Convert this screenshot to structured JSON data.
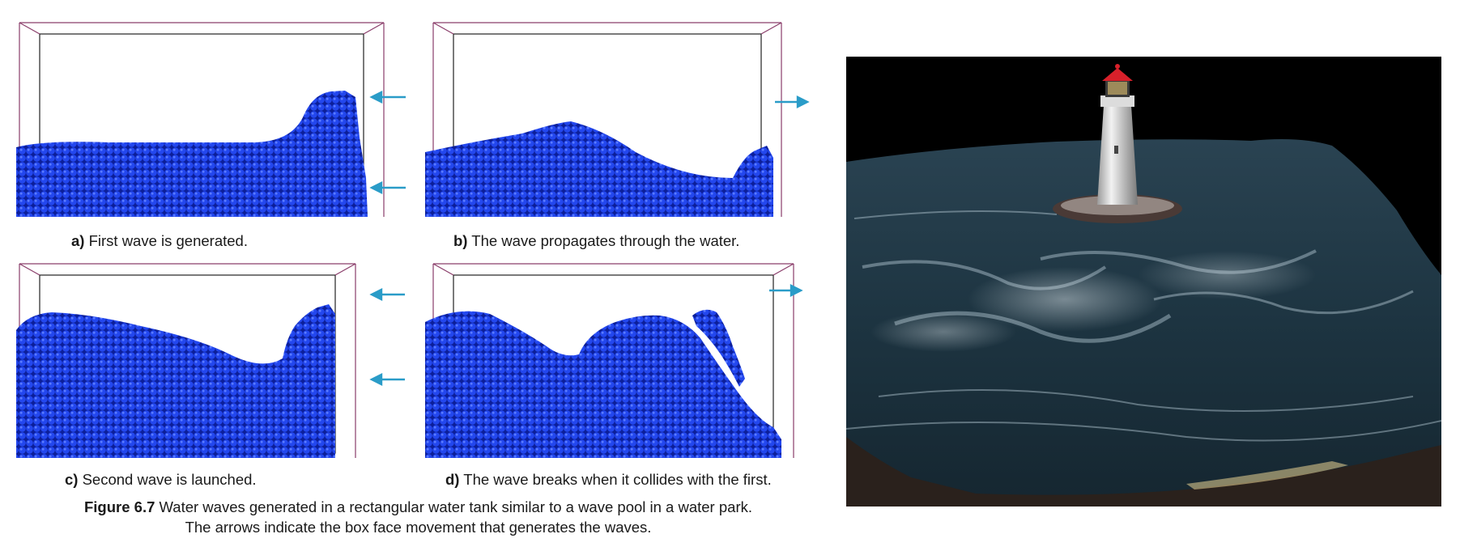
{
  "panels": [
    {
      "id": "a",
      "letter": "a)",
      "text": "First wave is generated.",
      "arrow_direction": "left"
    },
    {
      "id": "b",
      "letter": "b)",
      "text": "The wave propagates through the water.",
      "arrow_direction": "right"
    },
    {
      "id": "c",
      "letter": "c)",
      "text": "Second wave is launched.",
      "arrow_direction": "left"
    },
    {
      "id": "d",
      "letter": "d)",
      "text": "The wave breaks when it collides with the first.",
      "arrow_direction": "right"
    }
  ],
  "figure": {
    "label": "Figure 6.7",
    "line1": "Water waves generated in a rectangular water tank similar to a wave pool in a water park.",
    "line2": "The arrows indicate the box face movement that generates the waves."
  },
  "colors": {
    "particle_fill": "#1f3fe0",
    "particle_dark": "#0c1f9a",
    "arrow": "#2a9cc8",
    "box_edge": "#8a3d6a",
    "ocean": "#1c3442",
    "sky": "#000000"
  }
}
